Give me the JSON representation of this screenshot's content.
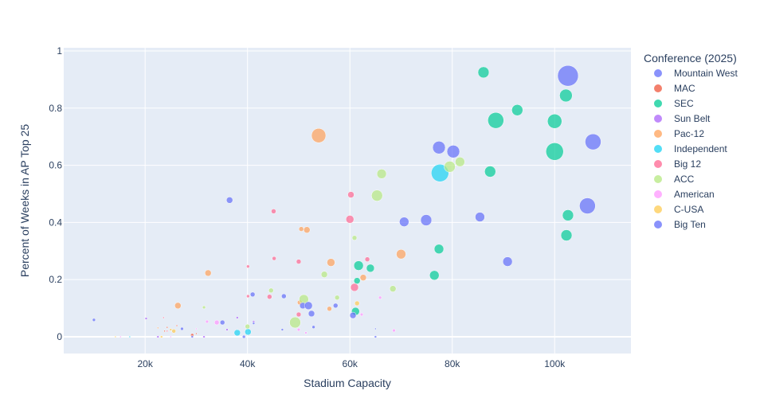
{
  "chart_data": {
    "type": "scatter",
    "title": "",
    "xlabel": "Stadium Capacity",
    "ylabel": "Percent of Weeks in AP Top 25",
    "xlim": [
      4100,
      114900
    ],
    "ylim": [
      -0.0585,
      1.011
    ],
    "xticks": [
      20000,
      40000,
      60000,
      80000,
      100000
    ],
    "xtick_labels": [
      "20k",
      "40k",
      "60k",
      "80k",
      "100k"
    ],
    "yticks": [
      0,
      0.2,
      0.4,
      0.6,
      0.8,
      1
    ],
    "ytick_labels": [
      "0",
      "0.2",
      "0.4",
      "0.6",
      "0.8",
      "1"
    ],
    "grid": true,
    "legend": {
      "title": "Conference (2025)",
      "position": "right"
    },
    "series": [
      {
        "name": "Mountain West",
        "color": "#636efa",
        "points": [
          {
            "x": 10000,
            "y": 0.059,
            "size": 2
          },
          {
            "x": 36500,
            "y": 0.478,
            "size": 4
          }
        ]
      },
      {
        "name": "MAC",
        "color": "#EF553B",
        "points": [
          {
            "x": 24300,
            "y": 0.033,
            "size": 1
          },
          {
            "x": 26200,
            "y": 0.039,
            "size": 1
          },
          {
            "x": 29200,
            "y": 0.006,
            "size": 2
          },
          {
            "x": 23800,
            "y": 0.02,
            "size": 1
          },
          {
            "x": 30000,
            "y": 0.011,
            "size": 1
          }
        ]
      },
      {
        "name": "SEC",
        "color": "#00cc96",
        "points": [
          {
            "x": 86100,
            "y": 0.925,
            "size": 7
          },
          {
            "x": 102200,
            "y": 0.844,
            "size": 8
          },
          {
            "x": 92700,
            "y": 0.793,
            "size": 7
          },
          {
            "x": 88500,
            "y": 0.757,
            "size": 10
          },
          {
            "x": 100000,
            "y": 0.754,
            "size": 9
          },
          {
            "x": 100000,
            "y": 0.648,
            "size": 11
          },
          {
            "x": 87400,
            "y": 0.578,
            "size": 7
          },
          {
            "x": 102600,
            "y": 0.425,
            "size": 7
          },
          {
            "x": 102300,
            "y": 0.355,
            "size": 7
          },
          {
            "x": 77400,
            "y": 0.307,
            "size": 6
          },
          {
            "x": 76500,
            "y": 0.215,
            "size": 6
          },
          {
            "x": 61700,
            "y": 0.249,
            "size": 6
          },
          {
            "x": 64000,
            "y": 0.24,
            "size": 5
          },
          {
            "x": 61400,
            "y": 0.196,
            "size": 4
          },
          {
            "x": 61100,
            "y": 0.089,
            "size": 5
          }
        ]
      },
      {
        "name": "Sun Belt",
        "color": "#ab63fa",
        "points": [
          {
            "x": 20200,
            "y": 0.064,
            "size": 1.5
          },
          {
            "x": 38000,
            "y": 0.067,
            "size": 1.5
          },
          {
            "x": 41200,
            "y": 0.053,
            "size": 1.5
          },
          {
            "x": 36000,
            "y": 0.025,
            "size": 1.5
          },
          {
            "x": 22500,
            "y": 0.0,
            "size": 1.5
          },
          {
            "x": 31500,
            "y": 0.0,
            "size": 1.5
          }
        ]
      },
      {
        "name": "Pac-12",
        "color": "#FFA15A",
        "points": [
          {
            "x": 53900,
            "y": 0.704,
            "size": 9
          },
          {
            "x": 50500,
            "y": 0.377,
            "size": 3
          },
          {
            "x": 51600,
            "y": 0.374,
            "size": 4
          },
          {
            "x": 70000,
            "y": 0.289,
            "size": 6
          },
          {
            "x": 56300,
            "y": 0.26,
            "size": 5
          },
          {
            "x": 62600,
            "y": 0.207,
            "size": 4
          },
          {
            "x": 32300,
            "y": 0.223,
            "size": 4
          },
          {
            "x": 26400,
            "y": 0.109,
            "size": 4
          },
          {
            "x": 56000,
            "y": 0.098,
            "size": 3
          },
          {
            "x": 50200,
            "y": 0.12,
            "size": 3
          },
          {
            "x": 22500,
            "y": 0.031,
            "size": 1
          }
        ]
      },
      {
        "name": "Independent",
        "color": "#19d3f3",
        "points": [
          {
            "x": 77600,
            "y": 0.573,
            "size": 11
          },
          {
            "x": 38000,
            "y": 0.014,
            "size": 4
          },
          {
            "x": 40100,
            "y": 0.017,
            "size": 4
          },
          {
            "x": 17000,
            "y": 0.0,
            "size": 1
          }
        ]
      },
      {
        "name": "Big 12",
        "color": "#FF6692",
        "points": [
          {
            "x": 60200,
            "y": 0.497,
            "size": 4
          },
          {
            "x": 45100,
            "y": 0.439,
            "size": 3
          },
          {
            "x": 60000,
            "y": 0.411,
            "size": 5
          },
          {
            "x": 45200,
            "y": 0.274,
            "size": 2.5
          },
          {
            "x": 50000,
            "y": 0.263,
            "size": 3
          },
          {
            "x": 63400,
            "y": 0.271,
            "size": 3
          },
          {
            "x": 40100,
            "y": 0.246,
            "size": 2
          },
          {
            "x": 60900,
            "y": 0.173,
            "size": 5
          },
          {
            "x": 40100,
            "y": 0.142,
            "size": 2
          },
          {
            "x": 44300,
            "y": 0.14,
            "size": 3
          },
          {
            "x": 50000,
            "y": 0.078,
            "size": 3
          },
          {
            "x": 23600,
            "y": 0.067,
            "size": 1
          },
          {
            "x": 24300,
            "y": 0.02,
            "size": 1
          }
        ]
      },
      {
        "name": "ACC",
        "color": "#B6E880",
        "points": [
          {
            "x": 81500,
            "y": 0.612,
            "size": 6
          },
          {
            "x": 79500,
            "y": 0.595,
            "size": 7
          },
          {
            "x": 66200,
            "y": 0.57,
            "size": 6
          },
          {
            "x": 65300,
            "y": 0.494,
            "size": 7
          },
          {
            "x": 60900,
            "y": 0.346,
            "size": 3
          },
          {
            "x": 55000,
            "y": 0.218,
            "size": 4
          },
          {
            "x": 68400,
            "y": 0.168,
            "size": 4
          },
          {
            "x": 44600,
            "y": 0.162,
            "size": 3
          },
          {
            "x": 57500,
            "y": 0.137,
            "size": 3
          },
          {
            "x": 51000,
            "y": 0.131,
            "size": 6
          },
          {
            "x": 31500,
            "y": 0.103,
            "size": 2
          },
          {
            "x": 49300,
            "y": 0.05,
            "size": 7
          },
          {
            "x": 40000,
            "y": 0.036,
            "size": 3
          }
        ]
      },
      {
        "name": "American",
        "color": "#FF97FF",
        "points": [
          {
            "x": 65900,
            "y": 0.137,
            "size": 2
          },
          {
            "x": 62300,
            "y": 0.078,
            "size": 2
          },
          {
            "x": 68600,
            "y": 0.022,
            "size": 2
          },
          {
            "x": 51400,
            "y": 0.014,
            "size": 1.5
          },
          {
            "x": 50000,
            "y": 0.025,
            "size": 2
          },
          {
            "x": 32100,
            "y": 0.053,
            "size": 2
          },
          {
            "x": 34000,
            "y": 0.05,
            "size": 3
          },
          {
            "x": 15200,
            "y": 0.0,
            "size": 1
          },
          {
            "x": 25000,
            "y": 0.0,
            "size": 1
          },
          {
            "x": 30000,
            "y": 0.028,
            "size": 1
          }
        ]
      },
      {
        "name": "C-USA",
        "color": "#FECB52",
        "points": [
          {
            "x": 61400,
            "y": 0.117,
            "size": 3
          },
          {
            "x": 25600,
            "y": 0.02,
            "size": 2.5
          },
          {
            "x": 14200,
            "y": 0.0,
            "size": 1
          },
          {
            "x": 23200,
            "y": 0.0,
            "size": 1.5
          },
          {
            "x": 25000,
            "y": 0.025,
            "size": 1.5
          }
        ]
      },
      {
        "name": "Big Ten",
        "color": "#636efa",
        "points": [
          {
            "x": 102600,
            "y": 0.913,
            "size": 13
          },
          {
            "x": 107500,
            "y": 0.682,
            "size": 10
          },
          {
            "x": 77400,
            "y": 0.662,
            "size": 8
          },
          {
            "x": 80200,
            "y": 0.648,
            "size": 8
          },
          {
            "x": 106400,
            "y": 0.458,
            "size": 10
          },
          {
            "x": 85400,
            "y": 0.419,
            "size": 6
          },
          {
            "x": 74900,
            "y": 0.408,
            "size": 7
          },
          {
            "x": 70600,
            "y": 0.402,
            "size": 6
          },
          {
            "x": 90800,
            "y": 0.263,
            "size": 6
          },
          {
            "x": 41000,
            "y": 0.148,
            "size": 3
          },
          {
            "x": 47100,
            "y": 0.142,
            "size": 3
          },
          {
            "x": 50800,
            "y": 0.109,
            "size": 4
          },
          {
            "x": 51900,
            "y": 0.109,
            "size": 5
          },
          {
            "x": 57200,
            "y": 0.109,
            "size": 3
          },
          {
            "x": 52500,
            "y": 0.081,
            "size": 4
          },
          {
            "x": 60600,
            "y": 0.075,
            "size": 4
          },
          {
            "x": 52900,
            "y": 0.034,
            "size": 2
          },
          {
            "x": 65000,
            "y": 0.028,
            "size": 1
          },
          {
            "x": 65000,
            "y": 0.0,
            "size": 1.5
          },
          {
            "x": 35100,
            "y": 0.05,
            "size": 3
          },
          {
            "x": 27200,
            "y": 0.028,
            "size": 2
          },
          {
            "x": 29200,
            "y": 0.0,
            "size": 1.5
          },
          {
            "x": 46800,
            "y": 0.025,
            "size": 1.5
          },
          {
            "x": 39300,
            "y": 0.0,
            "size": 2
          },
          {
            "x": 41200,
            "y": 0.047,
            "size": 1.5
          }
        ]
      }
    ]
  }
}
